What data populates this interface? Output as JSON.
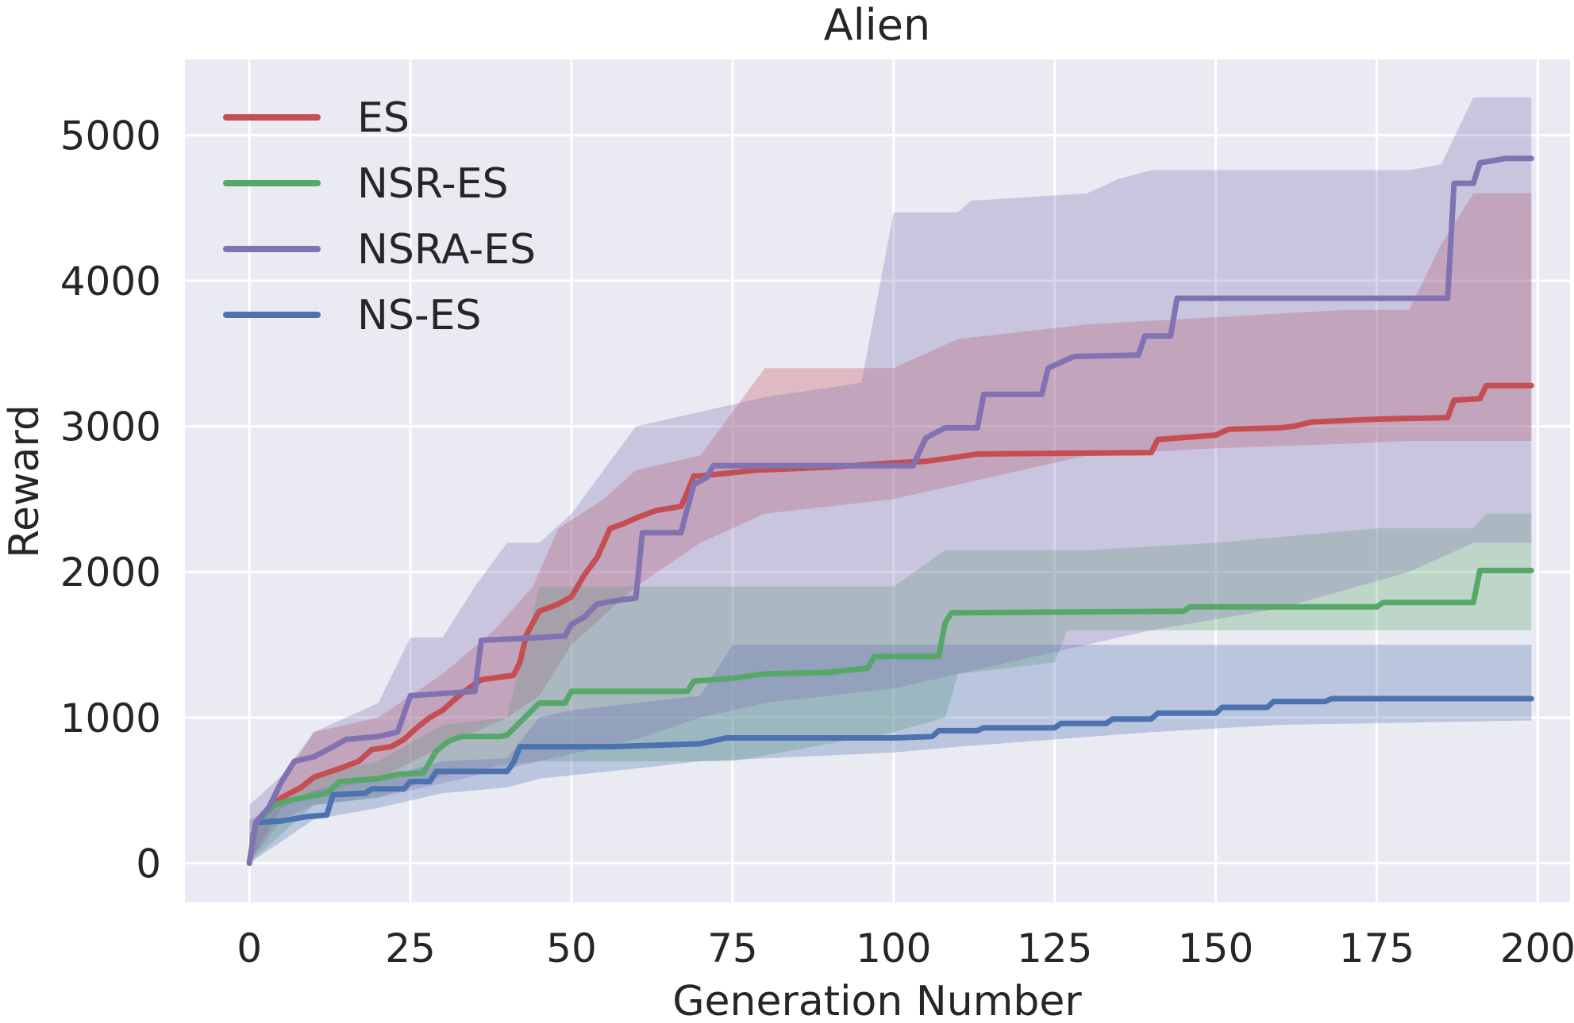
{
  "chart_data": {
    "type": "line",
    "title": "Alien",
    "xlabel": "Generation Number",
    "ylabel": "Reward",
    "xlim": [
      -10,
      205
    ],
    "ylim": [
      -270,
      5520
    ],
    "xticks": [
      0,
      25,
      50,
      75,
      100,
      125,
      150,
      175,
      200
    ],
    "yticks": [
      0,
      1000,
      2000,
      3000,
      4000,
      5000
    ],
    "grid": true,
    "legend_position": "top-left",
    "background": "#eaeaf2",
    "series": [
      {
        "name": "ES",
        "color": "#c44e52",
        "points": [
          [
            0,
            0
          ],
          [
            1,
            280
          ],
          [
            3,
            380
          ],
          [
            5,
            450
          ],
          [
            8,
            520
          ],
          [
            10,
            590
          ],
          [
            14,
            650
          ],
          [
            17,
            700
          ],
          [
            19,
            780
          ],
          [
            22,
            800
          ],
          [
            24,
            850
          ],
          [
            26,
            930
          ],
          [
            28,
            1000
          ],
          [
            30,
            1050
          ],
          [
            32,
            1130
          ],
          [
            34,
            1200
          ],
          [
            36,
            1260
          ],
          [
            41,
            1290
          ],
          [
            42,
            1380
          ],
          [
            43,
            1570
          ],
          [
            45,
            1730
          ],
          [
            48,
            1780
          ],
          [
            50,
            1830
          ],
          [
            52,
            1980
          ],
          [
            54,
            2100
          ],
          [
            56,
            2300
          ],
          [
            58,
            2330
          ],
          [
            60,
            2370
          ],
          [
            63,
            2420
          ],
          [
            67,
            2450
          ],
          [
            68,
            2550
          ],
          [
            69,
            2660
          ],
          [
            70,
            2660
          ],
          [
            79,
            2700
          ],
          [
            90,
            2720
          ],
          [
            100,
            2750
          ],
          [
            105,
            2760
          ],
          [
            110,
            2790
          ],
          [
            113,
            2810
          ],
          [
            140,
            2820
          ],
          [
            141,
            2910
          ],
          [
            150,
            2940
          ],
          [
            152,
            2980
          ],
          [
            160,
            2990
          ],
          [
            162,
            3000
          ],
          [
            165,
            3030
          ],
          [
            175,
            3050
          ],
          [
            186,
            3060
          ],
          [
            187,
            3180
          ],
          [
            191,
            3190
          ],
          [
            192,
            3280
          ],
          [
            199,
            3280
          ]
        ],
        "band_upper": [
          [
            0,
            200
          ],
          [
            5,
            550
          ],
          [
            10,
            900
          ],
          [
            20,
            1000
          ],
          [
            30,
            1300
          ],
          [
            38,
            1600
          ],
          [
            44,
            1900
          ],
          [
            48,
            2300
          ],
          [
            55,
            2500
          ],
          [
            60,
            2700
          ],
          [
            70,
            2800
          ],
          [
            80,
            3400
          ],
          [
            100,
            3400
          ],
          [
            110,
            3600
          ],
          [
            130,
            3700
          ],
          [
            150,
            3750
          ],
          [
            170,
            3800
          ],
          [
            180,
            3800
          ],
          [
            185,
            4250
          ],
          [
            190,
            4600
          ],
          [
            199,
            4600
          ]
        ],
        "band_lower": [
          [
            0,
            0
          ],
          [
            5,
            380
          ],
          [
            10,
            480
          ],
          [
            20,
            580
          ],
          [
            30,
            800
          ],
          [
            40,
            1000
          ],
          [
            45,
            1150
          ],
          [
            50,
            1500
          ],
          [
            60,
            1900
          ],
          [
            70,
            2200
          ],
          [
            80,
            2400
          ],
          [
            100,
            2500
          ],
          [
            110,
            2600
          ],
          [
            130,
            2800
          ],
          [
            150,
            2850
          ],
          [
            170,
            2880
          ],
          [
            180,
            2900
          ],
          [
            199,
            2900
          ]
        ]
      },
      {
        "name": "NSR-ES",
        "color": "#55a868",
        "points": [
          [
            0,
            0
          ],
          [
            1,
            270
          ],
          [
            4,
            400
          ],
          [
            6,
            430
          ],
          [
            12,
            480
          ],
          [
            14,
            560
          ],
          [
            20,
            580
          ],
          [
            23,
            610
          ],
          [
            27,
            620
          ],
          [
            29,
            770
          ],
          [
            31,
            840
          ],
          [
            33,
            870
          ],
          [
            39,
            870
          ],
          [
            40,
            880
          ],
          [
            45,
            1100
          ],
          [
            49,
            1100
          ],
          [
            50,
            1180
          ],
          [
            68,
            1180
          ],
          [
            69,
            1250
          ],
          [
            75,
            1270
          ],
          [
            80,
            1300
          ],
          [
            90,
            1310
          ],
          [
            96,
            1340
          ],
          [
            97,
            1420
          ],
          [
            107,
            1420
          ],
          [
            108,
            1650
          ],
          [
            109,
            1720
          ],
          [
            145,
            1730
          ],
          [
            146,
            1760
          ],
          [
            175,
            1760
          ],
          [
            176,
            1790
          ],
          [
            190,
            1790
          ],
          [
            191,
            2010
          ],
          [
            199,
            2010
          ]
        ],
        "band_upper": [
          [
            0,
            200
          ],
          [
            10,
            600
          ],
          [
            20,
            700
          ],
          [
            30,
            950
          ],
          [
            40,
            1000
          ],
          [
            45,
            1900
          ],
          [
            100,
            1900
          ],
          [
            108,
            2150
          ],
          [
            130,
            2150
          ],
          [
            150,
            2200
          ],
          [
            175,
            2300
          ],
          [
            190,
            2300
          ],
          [
            192,
            2400
          ],
          [
            199,
            2400
          ]
        ],
        "band_lower": [
          [
            0,
            0
          ],
          [
            10,
            400
          ],
          [
            20,
            450
          ],
          [
            30,
            600
          ],
          [
            40,
            680
          ],
          [
            45,
            700
          ],
          [
            75,
            700
          ],
          [
            100,
            900
          ],
          [
            108,
            1000
          ],
          [
            110,
            1300
          ],
          [
            125,
            1380
          ],
          [
            127,
            1600
          ],
          [
            190,
            1600
          ],
          [
            199,
            1600
          ]
        ]
      },
      {
        "name": "NSRA-ES",
        "color": "#8172b2",
        "points": [
          [
            0,
            0
          ],
          [
            1,
            280
          ],
          [
            3,
            380
          ],
          [
            5,
            560
          ],
          [
            7,
            700
          ],
          [
            10,
            730
          ],
          [
            13,
            800
          ],
          [
            15,
            850
          ],
          [
            20,
            870
          ],
          [
            23,
            900
          ],
          [
            25,
            1150
          ],
          [
            35,
            1180
          ],
          [
            36,
            1530
          ],
          [
            45,
            1550
          ],
          [
            49,
            1560
          ],
          [
            50,
            1640
          ],
          [
            52,
            1690
          ],
          [
            54,
            1780
          ],
          [
            58,
            1810
          ],
          [
            60,
            1820
          ],
          [
            61,
            2270
          ],
          [
            67,
            2270
          ],
          [
            68,
            2440
          ],
          [
            69,
            2600
          ],
          [
            71,
            2650
          ],
          [
            72,
            2730
          ],
          [
            103,
            2730
          ],
          [
            105,
            2920
          ],
          [
            108,
            2990
          ],
          [
            113,
            2990
          ],
          [
            114,
            3220
          ],
          [
            123,
            3220
          ],
          [
            124,
            3400
          ],
          [
            128,
            3480
          ],
          [
            138,
            3490
          ],
          [
            139,
            3620
          ],
          [
            143,
            3620
          ],
          [
            144,
            3880
          ],
          [
            186,
            3880
          ],
          [
            187,
            4670
          ],
          [
            190,
            4670
          ],
          [
            191,
            4810
          ],
          [
            195,
            4840
          ],
          [
            199,
            4840
          ]
        ],
        "band_upper": [
          [
            0,
            400
          ],
          [
            5,
            600
          ],
          [
            10,
            900
          ],
          [
            20,
            1100
          ],
          [
            25,
            1550
          ],
          [
            30,
            1550
          ],
          [
            35,
            1900
          ],
          [
            40,
            2200
          ],
          [
            45,
            2200
          ],
          [
            50,
            2400
          ],
          [
            55,
            2700
          ],
          [
            60,
            3000
          ],
          [
            70,
            3100
          ],
          [
            80,
            3200
          ],
          [
            95,
            3300
          ],
          [
            100,
            4470
          ],
          [
            110,
            4470
          ],
          [
            112,
            4550
          ],
          [
            130,
            4600
          ],
          [
            135,
            4700
          ],
          [
            140,
            4760
          ],
          [
            180,
            4760
          ],
          [
            185,
            4800
          ],
          [
            190,
            5260
          ],
          [
            199,
            5260
          ]
        ],
        "band_lower": [
          [
            0,
            0
          ],
          [
            5,
            300
          ],
          [
            10,
            400
          ],
          [
            20,
            450
          ],
          [
            30,
            550
          ],
          [
            40,
            650
          ],
          [
            50,
            750
          ],
          [
            60,
            850
          ],
          [
            70,
            1000
          ],
          [
            80,
            1100
          ],
          [
            100,
            1200
          ],
          [
            120,
            1400
          ],
          [
            140,
            1600
          ],
          [
            160,
            1750
          ],
          [
            180,
            2000
          ],
          [
            190,
            2200
          ],
          [
            199,
            2200
          ]
        ]
      },
      {
        "name": "NS-ES",
        "color": "#4c72b0",
        "points": [
          [
            0,
            0
          ],
          [
            1,
            280
          ],
          [
            5,
            290
          ],
          [
            9,
            320
          ],
          [
            12,
            330
          ],
          [
            13,
            470
          ],
          [
            18,
            480
          ],
          [
            19,
            510
          ],
          [
            24,
            510
          ],
          [
            25,
            560
          ],
          [
            28,
            560
          ],
          [
            29,
            630
          ],
          [
            40,
            630
          ],
          [
            41,
            690
          ],
          [
            42,
            800
          ],
          [
            56,
            800
          ],
          [
            70,
            820
          ],
          [
            74,
            860
          ],
          [
            100,
            860
          ],
          [
            106,
            870
          ],
          [
            107,
            910
          ],
          [
            113,
            910
          ],
          [
            114,
            930
          ],
          [
            125,
            930
          ],
          [
            126,
            960
          ],
          [
            133,
            960
          ],
          [
            134,
            990
          ],
          [
            140,
            990
          ],
          [
            141,
            1030
          ],
          [
            150,
            1030
          ],
          [
            151,
            1070
          ],
          [
            158,
            1070
          ],
          [
            159,
            1110
          ],
          [
            167,
            1110
          ],
          [
            168,
            1130
          ],
          [
            199,
            1130
          ]
        ],
        "band_upper": [
          [
            0,
            300
          ],
          [
            10,
            500
          ],
          [
            20,
            580
          ],
          [
            30,
            700
          ],
          [
            40,
            720
          ],
          [
            45,
            1000
          ],
          [
            50,
            1050
          ],
          [
            60,
            1100
          ],
          [
            70,
            1150
          ],
          [
            75,
            1500
          ],
          [
            199,
            1500
          ]
        ],
        "band_lower": [
          [
            0,
            0
          ],
          [
            10,
            300
          ],
          [
            20,
            380
          ],
          [
            30,
            480
          ],
          [
            40,
            520
          ],
          [
            45,
            580
          ],
          [
            60,
            650
          ],
          [
            70,
            700
          ],
          [
            100,
            760
          ],
          [
            110,
            800
          ],
          [
            140,
            900
          ],
          [
            160,
            950
          ],
          [
            199,
            980
          ]
        ]
      }
    ]
  }
}
